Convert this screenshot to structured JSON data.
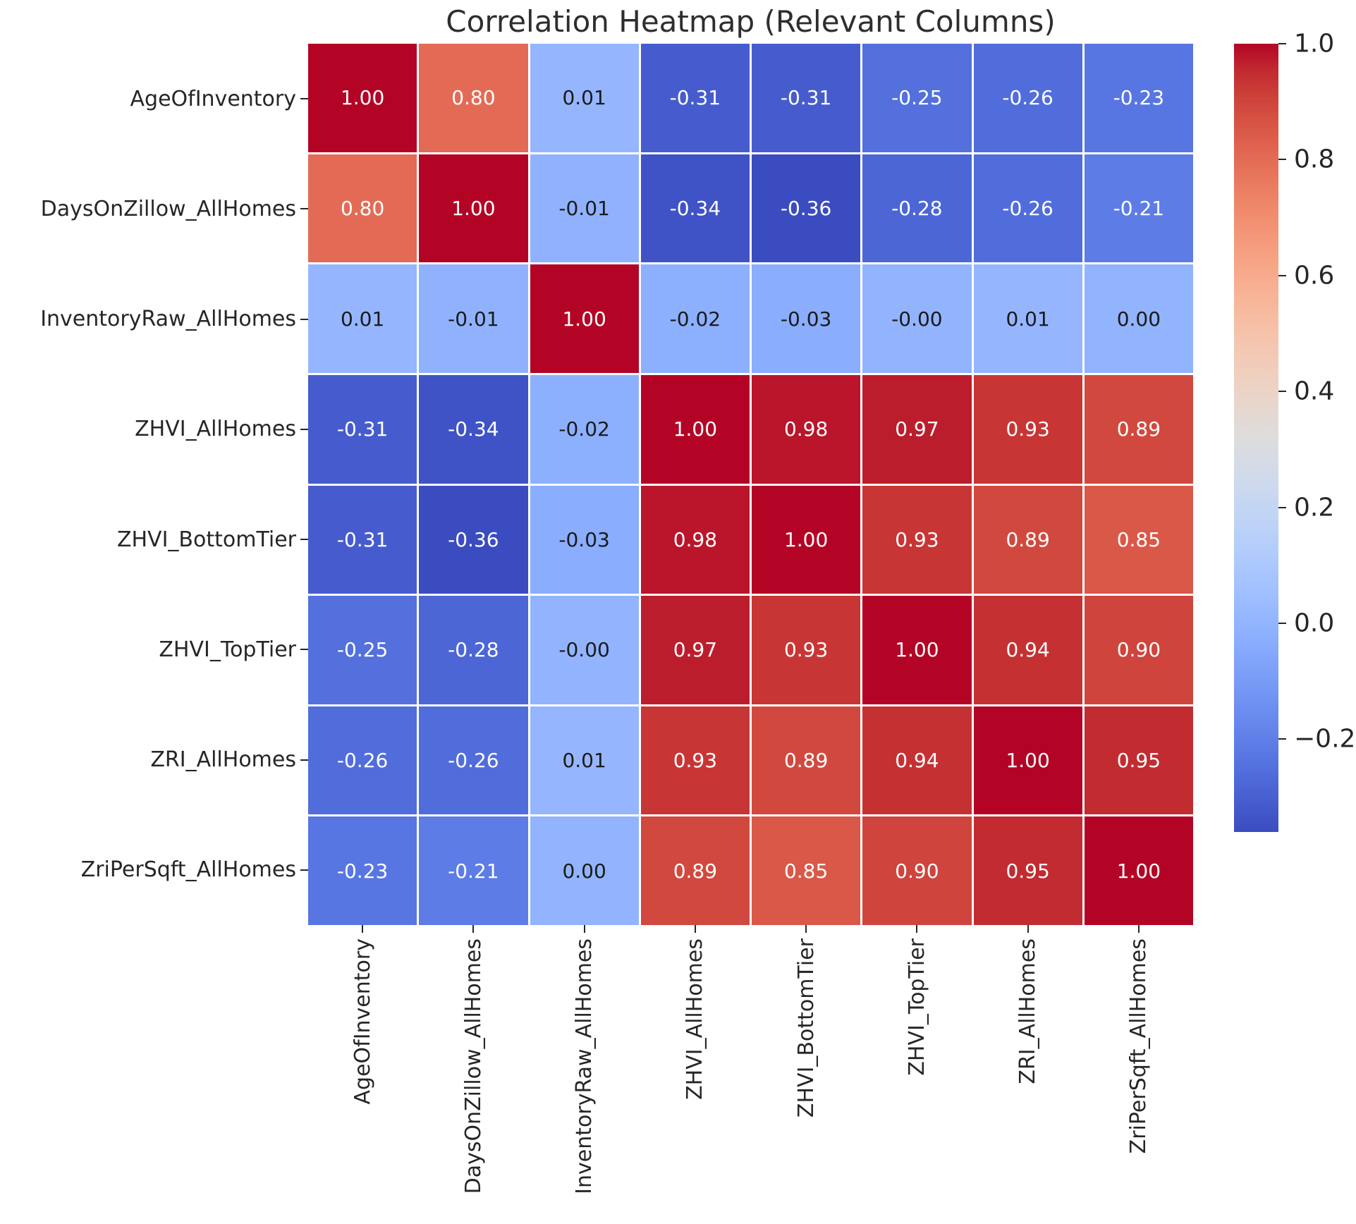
{
  "figure": {
    "background": "#ffffff"
  },
  "chart_data": {
    "type": "heatmap",
    "title": "Correlation Heatmap (Relevant Columns)",
    "labels": [
      "AgeOfInventory",
      "DaysOnZillow_AllHomes",
      "InventoryRaw_AllHomes",
      "ZHVI_AllHomes",
      "ZHVI_BottomTier",
      "ZHVI_TopTier",
      "ZRI_AllHomes",
      "ZriPerSqft_AllHomes"
    ],
    "matrix": [
      [
        "1.00",
        "0.80",
        "0.01",
        "-0.31",
        "-0.31",
        "-0.25",
        "-0.26",
        "-0.23"
      ],
      [
        "0.80",
        "1.00",
        "-0.01",
        "-0.34",
        "-0.36",
        "-0.28",
        "-0.26",
        "-0.21"
      ],
      [
        "0.01",
        "-0.01",
        "1.00",
        "-0.02",
        "-0.03",
        "-0.00",
        "0.01",
        "0.00"
      ],
      [
        "-0.31",
        "-0.34",
        "-0.02",
        "1.00",
        "0.98",
        "0.97",
        "0.93",
        "0.89"
      ],
      [
        "-0.31",
        "-0.36",
        "-0.03",
        "0.98",
        "1.00",
        "0.93",
        "0.89",
        "0.85"
      ],
      [
        "-0.25",
        "-0.28",
        "-0.00",
        "0.97",
        "0.93",
        "1.00",
        "0.94",
        "0.90"
      ],
      [
        "-0.26",
        "-0.26",
        "0.01",
        "0.93",
        "0.89",
        "0.94",
        "1.00",
        "0.95"
      ],
      [
        "-0.23",
        "-0.21",
        "0.00",
        "0.89",
        "0.85",
        "0.90",
        "0.95",
        "1.00"
      ]
    ],
    "colormap": "coolwarm",
    "vmin": -0.36,
    "vmax": 1.0,
    "legend_position": "right",
    "colorbar_ticks": [
      {
        "label": "1.0",
        "value": 1.0
      },
      {
        "label": "0.8",
        "value": 0.8
      },
      {
        "label": "0.6",
        "value": 0.6
      },
      {
        "label": "0.4",
        "value": 0.4
      },
      {
        "label": "0.2",
        "value": 0.2
      },
      {
        "label": "0.0",
        "value": 0.0
      },
      {
        "label": "−0.2",
        "value": -0.2
      }
    ],
    "colors": {
      "max_color": "#b40426",
      "min_color": "#3b4cc0",
      "grid_line": "#ffffff",
      "annotation_dark": "#1a1a1a",
      "annotation_light": "#ffffff",
      "axis_text": "#262626"
    }
  }
}
